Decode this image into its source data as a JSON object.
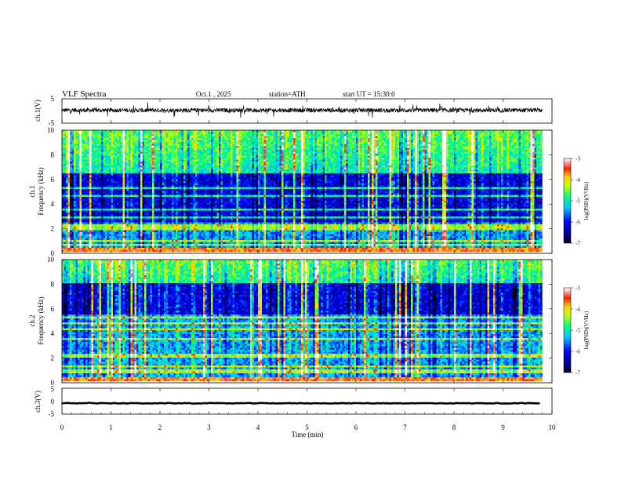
{
  "header": {
    "title": "VLF  Spectra",
    "date": "Oct.1  , 2025",
    "station": "station=ATH",
    "start_ut": "start  UT  =    15:30:0"
  },
  "chart_data": [
    {
      "id": "ch1_waveform",
      "type": "line",
      "ylabel": "ch.1(V)",
      "ylim": [
        -5,
        5
      ],
      "y_ticks": [
        "5",
        "-5"
      ],
      "xlim": [
        0,
        9.8
      ],
      "line_color": "#000000",
      "baseline": 0.3,
      "noise_amplitude": 2.5
    },
    {
      "id": "ch1_spectrogram",
      "type": "heatmap",
      "ylabel": "ch.1\nFrequency (kHz)",
      "ylim": [
        0,
        10
      ],
      "y_ticks": [
        "0",
        "2",
        "4",
        "6",
        "8",
        "10"
      ],
      "xlim": [
        0,
        9.8
      ],
      "colorbar": {
        "label": "log(PSD)(V²/Hz)",
        "range": [
          -7,
          -3
        ],
        "ticks": [
          "-3",
          "-4",
          "-5",
          "-6",
          "-7"
        ]
      },
      "horizontal_lines_khz": [
        0.3,
        0.6,
        0.9,
        1.8,
        2.1,
        2.8,
        3.4,
        4.6,
        5.2
      ],
      "quiet_band_khz": [
        2.5,
        6.5
      ]
    },
    {
      "id": "ch2_spectrogram",
      "type": "heatmap",
      "ylabel": "ch.2\nFrequency (kHz)",
      "ylim": [
        0,
        10
      ],
      "y_ticks": [
        "0",
        "2",
        "4",
        "6",
        "8",
        "10"
      ],
      "xlim": [
        0,
        9.8
      ],
      "colorbar": {
        "label": "log(PSD)(V²/Hz)",
        "range": [
          -7,
          -3
        ],
        "ticks": [
          "-3",
          "-4",
          "-5",
          "-6",
          "-7"
        ]
      },
      "horizontal_lines_khz": [
        0.8,
        1.2,
        2.0,
        2.2,
        3.5,
        4.3,
        4.8,
        5.2
      ],
      "quiet_band_khz": [
        5.5,
        8.0
      ]
    },
    {
      "id": "ch3_waveform",
      "type": "line",
      "ylabel": "ch.3(V)",
      "ylim": [
        -5,
        5
      ],
      "y_ticks": [
        "5",
        "0",
        "-5"
      ],
      "xlim": [
        0,
        9.8
      ],
      "line_color": "#000000",
      "baseline": -0.8,
      "noise_amplitude": 0.3
    }
  ],
  "x_axis": {
    "label": "Time  (min)",
    "range": [
      0,
      10
    ],
    "ticks": [
      "0",
      "1",
      "2",
      "3",
      "4",
      "5",
      "6",
      "7",
      "8",
      "9",
      "10"
    ]
  }
}
